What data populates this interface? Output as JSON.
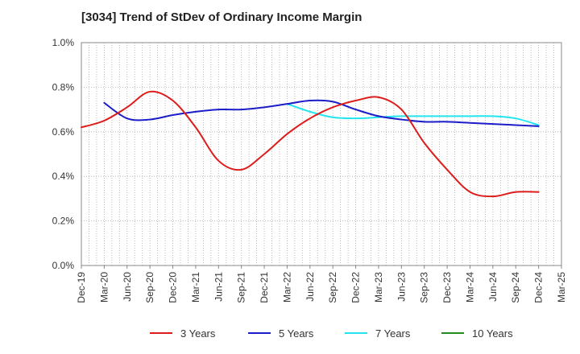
{
  "chart_data": {
    "type": "line",
    "title": "[3034]  Trend of StDev of Ordinary Income Margin",
    "xlabel": "",
    "ylabel": "",
    "x": [
      "Dec-19",
      "Mar-20",
      "Jun-20",
      "Sep-20",
      "Dec-20",
      "Mar-21",
      "Jun-21",
      "Sep-21",
      "Dec-21",
      "Mar-22",
      "Jun-22",
      "Sep-22",
      "Dec-22",
      "Mar-23",
      "Jun-23",
      "Sep-23",
      "Dec-23",
      "Mar-24",
      "Jun-24",
      "Sep-24",
      "Dec-24",
      "Mar-25"
    ],
    "ylim": [
      0,
      1.0
    ],
    "yticks": [
      "0.0%",
      "0.2%",
      "0.4%",
      "0.6%",
      "0.8%",
      "1.0%"
    ],
    "grid": true,
    "legend_position": "bottom",
    "series": [
      {
        "name": "3 Years",
        "color": "#dd1c1c",
        "values": [
          0.62,
          0.65,
          0.71,
          0.78,
          0.74,
          0.62,
          0.47,
          0.43,
          0.5,
          0.59,
          0.66,
          0.71,
          0.74,
          0.755,
          0.7,
          0.55,
          0.43,
          0.33,
          0.31,
          0.33,
          0.33,
          null
        ]
      },
      {
        "name": "5 Years",
        "color": "#1c1cc8",
        "values": [
          null,
          0.73,
          0.66,
          0.655,
          0.675,
          0.69,
          0.7,
          0.7,
          0.71,
          0.725,
          0.74,
          0.735,
          0.7,
          0.67,
          0.655,
          0.645,
          0.645,
          0.64,
          0.635,
          0.63,
          0.625,
          null
        ]
      },
      {
        "name": "7 Years",
        "color": "#22e5f0",
        "values": [
          null,
          null,
          null,
          null,
          null,
          null,
          null,
          null,
          null,
          0.725,
          0.69,
          0.665,
          0.66,
          0.665,
          0.67,
          0.67,
          0.67,
          0.67,
          0.67,
          0.66,
          0.63,
          null
        ]
      },
      {
        "name": "10 Years",
        "color": "#228b22",
        "values": [
          null,
          null,
          null,
          null,
          null,
          null,
          null,
          null,
          null,
          null,
          null,
          null,
          null,
          null,
          null,
          null,
          null,
          null,
          null,
          null,
          null,
          null
        ]
      }
    ]
  }
}
